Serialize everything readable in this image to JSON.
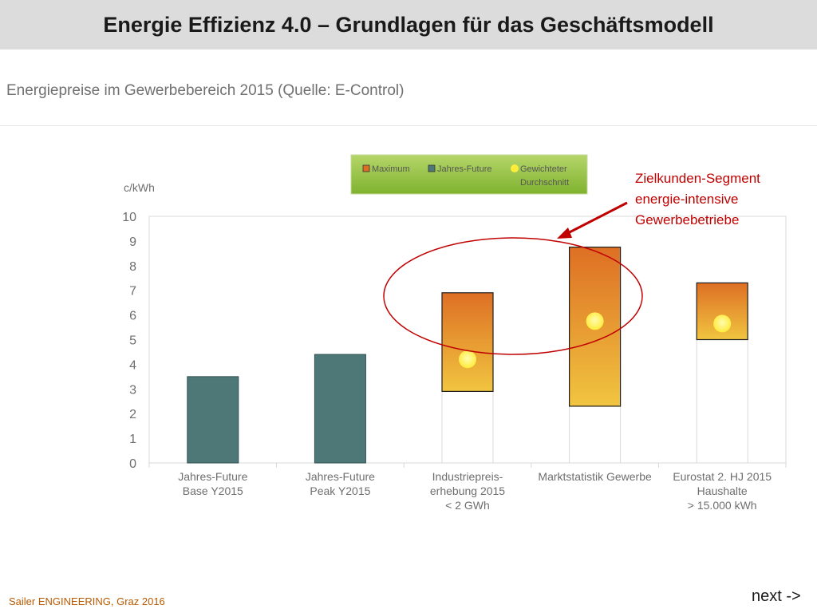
{
  "header": {
    "title": "Energie Effizienz 4.0 – Grundlagen für das Geschäftsmodell"
  },
  "subtitle": "Energiepreise im Gewerbebereich 2015 (Quelle: E-Control)",
  "annotation": {
    "lines": [
      "Zielkunden-Segment",
      "energie-intensive",
      "Gewerbebetriebe"
    ]
  },
  "footer": {
    "credit": "Sailer ENGINEERING, Graz 2016",
    "next_label": "next ->"
  },
  "colors": {
    "future_bar": "#4e7878",
    "range_top": "#dd6f24",
    "range_bottom": "#f1c540",
    "average_dot": "#ffec3a",
    "annotation": "#c00000",
    "legend_bg": "#8cbd3a"
  },
  "chart_data": {
    "type": "bar",
    "ylabel": "c/kWh",
    "ylim": [
      0,
      10
    ],
    "yticks": [
      0,
      1,
      2,
      3,
      4,
      5,
      6,
      7,
      8,
      9,
      10
    ],
    "categories": [
      [
        "Jahres-Future",
        "Base Y2015"
      ],
      [
        "Jahres-Future",
        "Peak Y2015"
      ],
      [
        "Industriepreis-",
        "erhebung 2015",
        "< 2 GWh"
      ],
      [
        "Marktstatistik Gewerbe"
      ],
      [
        "Eurostat 2. HJ 2015",
        "Haushalte",
        "> 15.000 kWh"
      ]
    ],
    "legend": [
      {
        "label": "Maximum",
        "marker": "range"
      },
      {
        "label": "Jahres-Future",
        "marker": "future"
      },
      {
        "label": [
          "Gewichteter",
          "Durchschnitt"
        ],
        "marker": "dot"
      }
    ],
    "future_values": [
      3.5,
      4.4,
      null,
      null,
      null
    ],
    "range_min": [
      null,
      null,
      2.9,
      2.3,
      5.0
    ],
    "range_max": [
      null,
      null,
      6.9,
      8.75,
      7.3
    ],
    "weighted_average": [
      null,
      null,
      4.2,
      5.75,
      5.65
    ],
    "grid": false
  }
}
